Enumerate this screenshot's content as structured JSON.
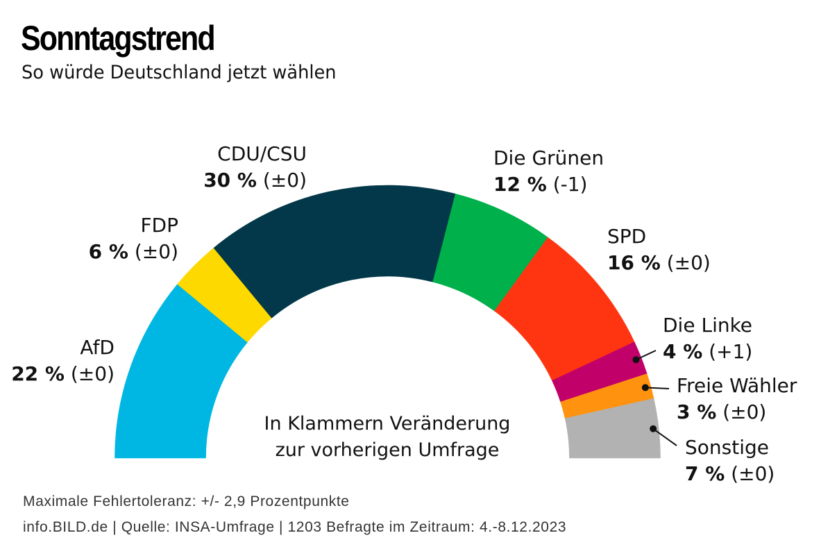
{
  "header": {
    "title": "Sonntagstrend",
    "subtitle": "So würde Deutschland jetzt wählen"
  },
  "note": {
    "line1": "In Klammern Veränderung",
    "line2": "zur vorherigen Umfrage"
  },
  "footer": {
    "line1": "Maximale Fehlertoleranz: +/- 2,9 Prozentpunkte",
    "line2": "info.BILD.de | Quelle: INSA-Umfrage | 1203 Befragte im Zeitraum: 4.-8.12.2023"
  },
  "chart_data": {
    "type": "pie",
    "variant": "half-donut (parliament arc)",
    "title": "Sonntagstrend",
    "subtitle": "So würde Deutschland jetzt wählen",
    "unit": "%",
    "order": "left-to-right",
    "categories": [
      "AfD",
      "FDP",
      "CDU/CSU",
      "Die Grünen",
      "SPD",
      "Die Linke",
      "Freie Wähler",
      "Sonstige"
    ],
    "values": [
      22,
      6,
      30,
      12,
      16,
      4,
      3,
      7
    ],
    "changes": [
      "±0",
      "±0",
      "±0",
      "-1",
      "±0",
      "+1",
      "±0",
      "±0"
    ],
    "colors": [
      "#00b7e3",
      "#fdd900",
      "#023849",
      "#00b04a",
      "#ff3511",
      "#c1006a",
      "#ff9310",
      "#b2b2b2"
    ],
    "labels": [
      {
        "name": "AfD",
        "pct": "22 %",
        "change": "(±0)"
      },
      {
        "name": "FDP",
        "pct": "6 %",
        "change": "(±0)"
      },
      {
        "name": "CDU/CSU",
        "pct": "30 %",
        "change": "(±0)"
      },
      {
        "name": "Die Grünen",
        "pct": "12 %",
        "change": "(-1)"
      },
      {
        "name": "SPD",
        "pct": "16 %",
        "change": "(±0)"
      },
      {
        "name": "Die Linke",
        "pct": "4 %",
        "change": "(+1)"
      },
      {
        "name": "Freie Wähler",
        "pct": "3 %",
        "change": "(±0)"
      },
      {
        "name": "Sonstige",
        "pct": "7 %",
        "change": "(±0)"
      }
    ],
    "annotation": "In Klammern Veränderung zur vorherigen Umfrage"
  }
}
